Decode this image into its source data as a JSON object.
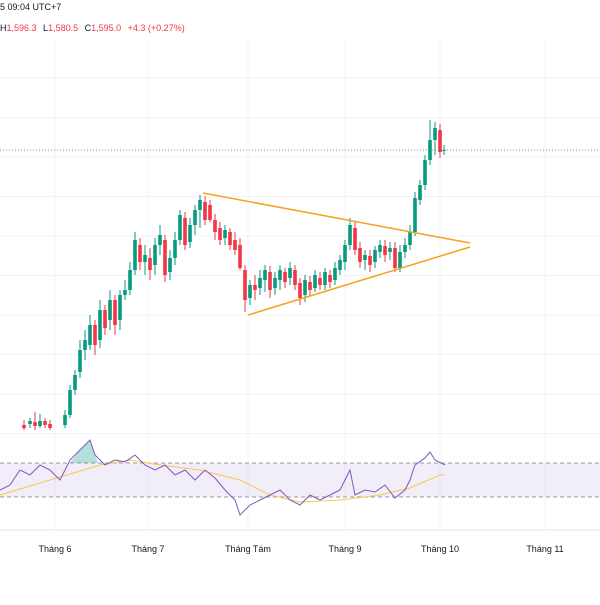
{
  "header": {
    "time": "5 09:04 UTC+7",
    "ohlc": [
      {
        "key": "H",
        "value": "1,596.3"
      },
      {
        "key": "L",
        "value": "1,580.5"
      },
      {
        "key": "C",
        "value": "1,595.0"
      }
    ],
    "change": "+4.3 (+0.27%)"
  },
  "time_axis": {
    "labels": [
      "Tháng 6",
      "Tháng 7",
      "Tháng Tám",
      "Tháng 9",
      "Tháng 10",
      "Tháng 11"
    ]
  }
}
